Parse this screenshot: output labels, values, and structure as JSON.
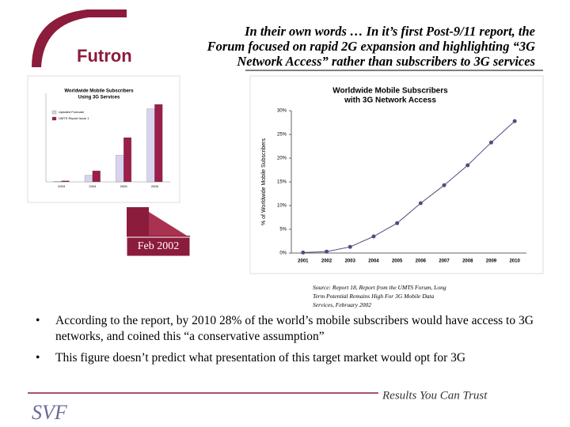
{
  "header": {
    "logo": "Futron",
    "title_lines": [
      "In their own words … In it’s first Post-9/11 report, the",
      "Forum focused on rapid 2G expansion and highlighting “3G",
      "Network Access” rather than subscribers to 3G services"
    ]
  },
  "chart_data": [
    {
      "type": "line",
      "title_lines": [
        "Worldwide Mobile Subscribers",
        "with 3G Network Access"
      ],
      "y_label": "% of Worldwide Mobile Subscribers",
      "categories": [
        "2001",
        "2002",
        "2003",
        "2004",
        "2005",
        "2006",
        "2007",
        "2008",
        "2009",
        "2010"
      ],
      "values": [
        0.1,
        0.3,
        1.3,
        3.5,
        6.3,
        10.5,
        14.3,
        18.5,
        23.3,
        27.8
      ],
      "color": "#4d4d80",
      "ylim": [
        0,
        30
      ],
      "yticks": [
        {
          "value": 0,
          "label": "0%"
        },
        {
          "value": 5,
          "label": "5%"
        },
        {
          "value": 10,
          "label": "10%"
        },
        {
          "value": 15,
          "label": "15%"
        },
        {
          "value": 20,
          "label": "20%"
        },
        {
          "value": 25,
          "label": "25%"
        },
        {
          "value": 30,
          "label": "30%"
        }
      ]
    },
    {
      "type": "bar",
      "title_lines": [
        "Worldwide Mobile Subscribers",
        "Using 3G Services"
      ],
      "categories": [
        "2003",
        "2004",
        "2005",
        "2006"
      ],
      "series": [
        {
          "name": "Updated Forecast",
          "color": "#d8d4f0",
          "values": [
            0.3,
            3,
            12,
            33
          ]
        },
        {
          "name": "UMTS Report Issue 1",
          "color": "#9a1f4a",
          "values": [
            0.5,
            5,
            20,
            35
          ]
        }
      ],
      "ylim": [
        0,
        40
      ]
    }
  ],
  "date_label": "Feb 2002",
  "source": "Source: Report 18, Report from the UMTS Forum, Long Term Potential Remains High For 3G Mobile Data Services, February 2002",
  "bullets": [
    "According to the report, by 2010 28% of the world’s mobile subscribers would have access to 3G networks, and coined this “a conservative assumption”",
    "This figure doesn’t predict what presentation of this target market would opt for 3G"
  ],
  "footer": {
    "tagline": "Results You Can Trust",
    "logo": "SVF"
  }
}
